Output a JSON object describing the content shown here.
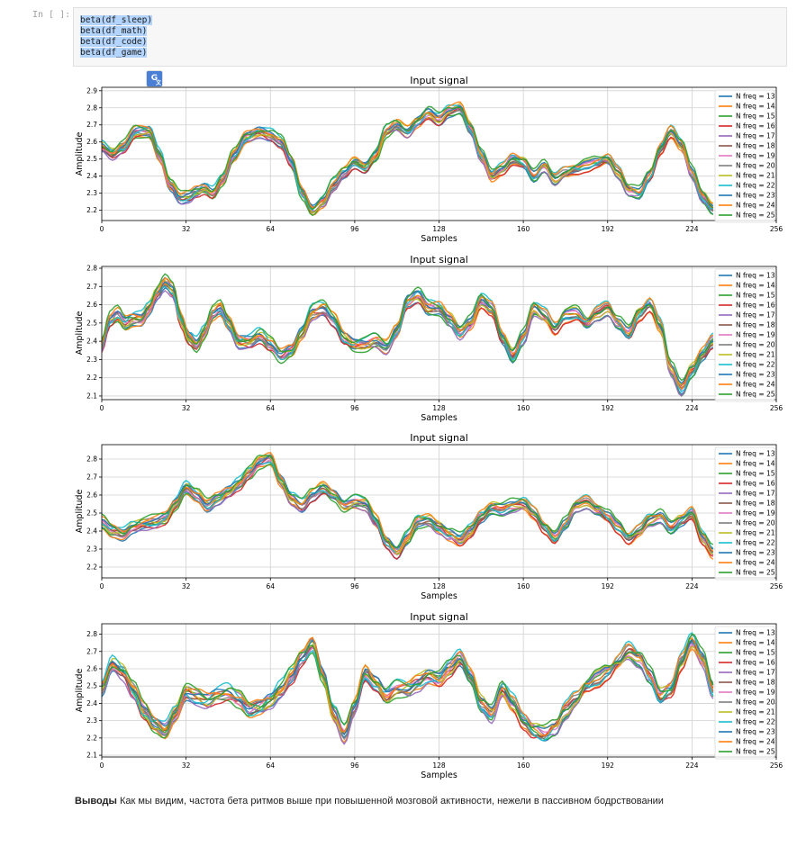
{
  "cell": {
    "prompt": "In [ ]:",
    "code_lines": [
      "beta(df_sleep)",
      "beta(df_math)",
      "beta(df_code)",
      "beta(df_game)"
    ]
  },
  "translate_icon": "google-translate-icon",
  "charts_common": {
    "legend": [
      "N freq = 13",
      "N freq = 14",
      "N freq = 15",
      "N freq = 16",
      "N freq = 17",
      "N freq = 18",
      "N freq = 19",
      "N freq = 20",
      "N freq = 21",
      "N freq = 22",
      "N freq = 23",
      "N freq = 24",
      "N freq = 25"
    ],
    "series_colors": [
      "#1f77b4",
      "#ff7f0e",
      "#2ca02c",
      "#d62728",
      "#9467bd",
      "#8c564b",
      "#e377c2",
      "#7f7f7f",
      "#bcbd22",
      "#17becf",
      "#1f77b4",
      "#ff7f0e",
      "#2ca02c"
    ],
    "x_ticks": [
      0,
      32,
      64,
      96,
      128,
      160,
      192,
      224,
      256
    ],
    "xlim": [
      0,
      256
    ],
    "x_data_max": 232,
    "grid": true,
    "legend_placement": "right"
  },
  "chart_data": [
    {
      "type": "line",
      "title": "Input signal",
      "xlabel": "Samples",
      "ylabel": "Amplitude",
      "ylim": [
        2.14,
        2.92
      ],
      "y_ticks": [
        2.2,
        2.3,
        2.4,
        2.5,
        2.6,
        2.7,
        2.8,
        2.9
      ],
      "baseline": [
        [
          0,
          2.57
        ],
        [
          4,
          2.53
        ],
        [
          8,
          2.57
        ],
        [
          13,
          2.66
        ],
        [
          18,
          2.66
        ],
        [
          22,
          2.52
        ],
        [
          26,
          2.35
        ],
        [
          30,
          2.27
        ],
        [
          33,
          2.28
        ],
        [
          36,
          2.31
        ],
        [
          39,
          2.33
        ],
        [
          42,
          2.3
        ],
        [
          46,
          2.38
        ],
        [
          50,
          2.52
        ],
        [
          55,
          2.63
        ],
        [
          60,
          2.66
        ],
        [
          64,
          2.64
        ],
        [
          68,
          2.6
        ],
        [
          72,
          2.48
        ],
        [
          76,
          2.3
        ],
        [
          80,
          2.2
        ],
        [
          84,
          2.25
        ],
        [
          88,
          2.35
        ],
        [
          92,
          2.42
        ],
        [
          96,
          2.48
        ],
        [
          100,
          2.45
        ],
        [
          104,
          2.52
        ],
        [
          108,
          2.66
        ],
        [
          112,
          2.7
        ],
        [
          116,
          2.66
        ],
        [
          120,
          2.72
        ],
        [
          124,
          2.77
        ],
        [
          128,
          2.73
        ],
        [
          132,
          2.78
        ],
        [
          136,
          2.8
        ],
        [
          140,
          2.68
        ],
        [
          144,
          2.52
        ],
        [
          148,
          2.4
        ],
        [
          152,
          2.44
        ],
        [
          156,
          2.5
        ],
        [
          160,
          2.48
        ],
        [
          164,
          2.4
        ],
        [
          168,
          2.46
        ],
        [
          172,
          2.38
        ],
        [
          176,
          2.42
        ],
        [
          180,
          2.44
        ],
        [
          184,
          2.46
        ],
        [
          188,
          2.48
        ],
        [
          192,
          2.5
        ],
        [
          196,
          2.42
        ],
        [
          200,
          2.32
        ],
        [
          204,
          2.3
        ],
        [
          208,
          2.4
        ],
        [
          212,
          2.56
        ],
        [
          216,
          2.66
        ],
        [
          220,
          2.58
        ],
        [
          224,
          2.42
        ],
        [
          228,
          2.28
        ],
        [
          232,
          2.21
        ]
      ],
      "spread": 0.05
    },
    {
      "type": "line",
      "title": "Input signal",
      "xlabel": "Samples",
      "ylabel": "Amplitude",
      "ylim": [
        2.08,
        2.81
      ],
      "y_ticks": [
        2.1,
        2.2,
        2.3,
        2.4,
        2.5,
        2.6,
        2.7,
        2.8
      ],
      "baseline": [
        [
          0,
          2.38
        ],
        [
          3,
          2.52
        ],
        [
          6,
          2.55
        ],
        [
          9,
          2.5
        ],
        [
          12,
          2.52
        ],
        [
          15,
          2.52
        ],
        [
          18,
          2.58
        ],
        [
          21,
          2.66
        ],
        [
          24,
          2.72
        ],
        [
          27,
          2.68
        ],
        [
          30,
          2.52
        ],
        [
          33,
          2.42
        ],
        [
          36,
          2.38
        ],
        [
          39,
          2.45
        ],
        [
          42,
          2.55
        ],
        [
          45,
          2.58
        ],
        [
          48,
          2.5
        ],
        [
          52,
          2.4
        ],
        [
          56,
          2.4
        ],
        [
          60,
          2.43
        ],
        [
          64,
          2.38
        ],
        [
          68,
          2.32
        ],
        [
          72,
          2.35
        ],
        [
          76,
          2.45
        ],
        [
          80,
          2.56
        ],
        [
          84,
          2.58
        ],
        [
          88,
          2.52
        ],
        [
          92,
          2.42
        ],
        [
          96,
          2.38
        ],
        [
          100,
          2.38
        ],
        [
          104,
          2.4
        ],
        [
          108,
          2.37
        ],
        [
          112,
          2.46
        ],
        [
          116,
          2.62
        ],
        [
          120,
          2.65
        ],
        [
          124,
          2.58
        ],
        [
          128,
          2.58
        ],
        [
          132,
          2.52
        ],
        [
          136,
          2.45
        ],
        [
          140,
          2.5
        ],
        [
          144,
          2.62
        ],
        [
          148,
          2.58
        ],
        [
          152,
          2.42
        ],
        [
          156,
          2.32
        ],
        [
          160,
          2.42
        ],
        [
          164,
          2.58
        ],
        [
          168,
          2.54
        ],
        [
          172,
          2.47
        ],
        [
          176,
          2.54
        ],
        [
          180,
          2.55
        ],
        [
          184,
          2.5
        ],
        [
          188,
          2.55
        ],
        [
          192,
          2.58
        ],
        [
          196,
          2.5
        ],
        [
          200,
          2.44
        ],
        [
          204,
          2.55
        ],
        [
          208,
          2.6
        ],
        [
          212,
          2.48
        ],
        [
          216,
          2.25
        ],
        [
          220,
          2.14
        ],
        [
          224,
          2.24
        ],
        [
          228,
          2.33
        ],
        [
          232,
          2.4
        ]
      ],
      "spread": 0.06
    },
    {
      "type": "line",
      "title": "Input signal",
      "xlabel": "Samples",
      "ylabel": "Amplitude",
      "ylim": [
        2.14,
        2.88
      ],
      "y_ticks": [
        2.2,
        2.3,
        2.4,
        2.5,
        2.6,
        2.7,
        2.8
      ],
      "baseline": [
        [
          0,
          2.45
        ],
        [
          4,
          2.4
        ],
        [
          8,
          2.38
        ],
        [
          12,
          2.42
        ],
        [
          16,
          2.44
        ],
        [
          20,
          2.45
        ],
        [
          24,
          2.47
        ],
        [
          28,
          2.55
        ],
        [
          32,
          2.64
        ],
        [
          36,
          2.6
        ],
        [
          40,
          2.54
        ],
        [
          44,
          2.58
        ],
        [
          48,
          2.62
        ],
        [
          52,
          2.66
        ],
        [
          56,
          2.72
        ],
        [
          60,
          2.78
        ],
        [
          64,
          2.8
        ],
        [
          68,
          2.68
        ],
        [
          72,
          2.58
        ],
        [
          76,
          2.54
        ],
        [
          80,
          2.6
        ],
        [
          84,
          2.64
        ],
        [
          88,
          2.6
        ],
        [
          92,
          2.54
        ],
        [
          96,
          2.56
        ],
        [
          100,
          2.55
        ],
        [
          104,
          2.46
        ],
        [
          108,
          2.34
        ],
        [
          112,
          2.28
        ],
        [
          116,
          2.36
        ],
        [
          120,
          2.45
        ],
        [
          124,
          2.46
        ],
        [
          128,
          2.42
        ],
        [
          132,
          2.38
        ],
        [
          136,
          2.35
        ],
        [
          140,
          2.4
        ],
        [
          144,
          2.48
        ],
        [
          148,
          2.53
        ],
        [
          152,
          2.52
        ],
        [
          156,
          2.54
        ],
        [
          160,
          2.55
        ],
        [
          164,
          2.5
        ],
        [
          168,
          2.42
        ],
        [
          172,
          2.36
        ],
        [
          176,
          2.44
        ],
        [
          180,
          2.54
        ],
        [
          184,
          2.56
        ],
        [
          188,
          2.52
        ],
        [
          192,
          2.48
        ],
        [
          196,
          2.42
        ],
        [
          200,
          2.36
        ],
        [
          204,
          2.4
        ],
        [
          208,
          2.46
        ],
        [
          212,
          2.48
        ],
        [
          216,
          2.42
        ],
        [
          220,
          2.46
        ],
        [
          224,
          2.5
        ],
        [
          228,
          2.36
        ],
        [
          232,
          2.28
        ]
      ],
      "spread": 0.05
    },
    {
      "type": "line",
      "title": "Input signal",
      "xlabel": "Samples",
      "ylabel": "Amplitude",
      "ylim": [
        2.09,
        2.86
      ],
      "y_ticks": [
        2.1,
        2.2,
        2.3,
        2.4,
        2.5,
        2.6,
        2.7,
        2.8
      ],
      "baseline": [
        [
          0,
          2.48
        ],
        [
          4,
          2.62
        ],
        [
          8,
          2.58
        ],
        [
          12,
          2.48
        ],
        [
          16,
          2.36
        ],
        [
          20,
          2.28
        ],
        [
          24,
          2.24
        ],
        [
          28,
          2.34
        ],
        [
          32,
          2.46
        ],
        [
          36,
          2.44
        ],
        [
          40,
          2.42
        ],
        [
          44,
          2.45
        ],
        [
          48,
          2.46
        ],
        [
          52,
          2.42
        ],
        [
          56,
          2.36
        ],
        [
          60,
          2.38
        ],
        [
          64,
          2.42
        ],
        [
          68,
          2.48
        ],
        [
          72,
          2.56
        ],
        [
          76,
          2.66
        ],
        [
          80,
          2.74
        ],
        [
          84,
          2.56
        ],
        [
          88,
          2.34
        ],
        [
          92,
          2.22
        ],
        [
          96,
          2.38
        ],
        [
          100,
          2.58
        ],
        [
          104,
          2.52
        ],
        [
          108,
          2.44
        ],
        [
          112,
          2.48
        ],
        [
          116,
          2.48
        ],
        [
          120,
          2.52
        ],
        [
          124,
          2.56
        ],
        [
          128,
          2.54
        ],
        [
          132,
          2.6
        ],
        [
          136,
          2.66
        ],
        [
          140,
          2.56
        ],
        [
          144,
          2.4
        ],
        [
          148,
          2.34
        ],
        [
          152,
          2.48
        ],
        [
          156,
          2.4
        ],
        [
          160,
          2.3
        ],
        [
          164,
          2.24
        ],
        [
          168,
          2.22
        ],
        [
          172,
          2.26
        ],
        [
          176,
          2.36
        ],
        [
          180,
          2.42
        ],
        [
          184,
          2.5
        ],
        [
          188,
          2.54
        ],
        [
          192,
          2.58
        ],
        [
          196,
          2.64
        ],
        [
          200,
          2.7
        ],
        [
          204,
          2.66
        ],
        [
          208,
          2.56
        ],
        [
          212,
          2.44
        ],
        [
          216,
          2.48
        ],
        [
          220,
          2.64
        ],
        [
          224,
          2.76
        ],
        [
          228,
          2.66
        ],
        [
          232,
          2.48
        ]
      ],
      "spread": 0.08
    }
  ],
  "conclusion": {
    "bold": "Выводы",
    "text": " Как мы видим, частота бета ритмов выше при повышенной мозговой активности, нежели в пассивном бодрствовании"
  }
}
